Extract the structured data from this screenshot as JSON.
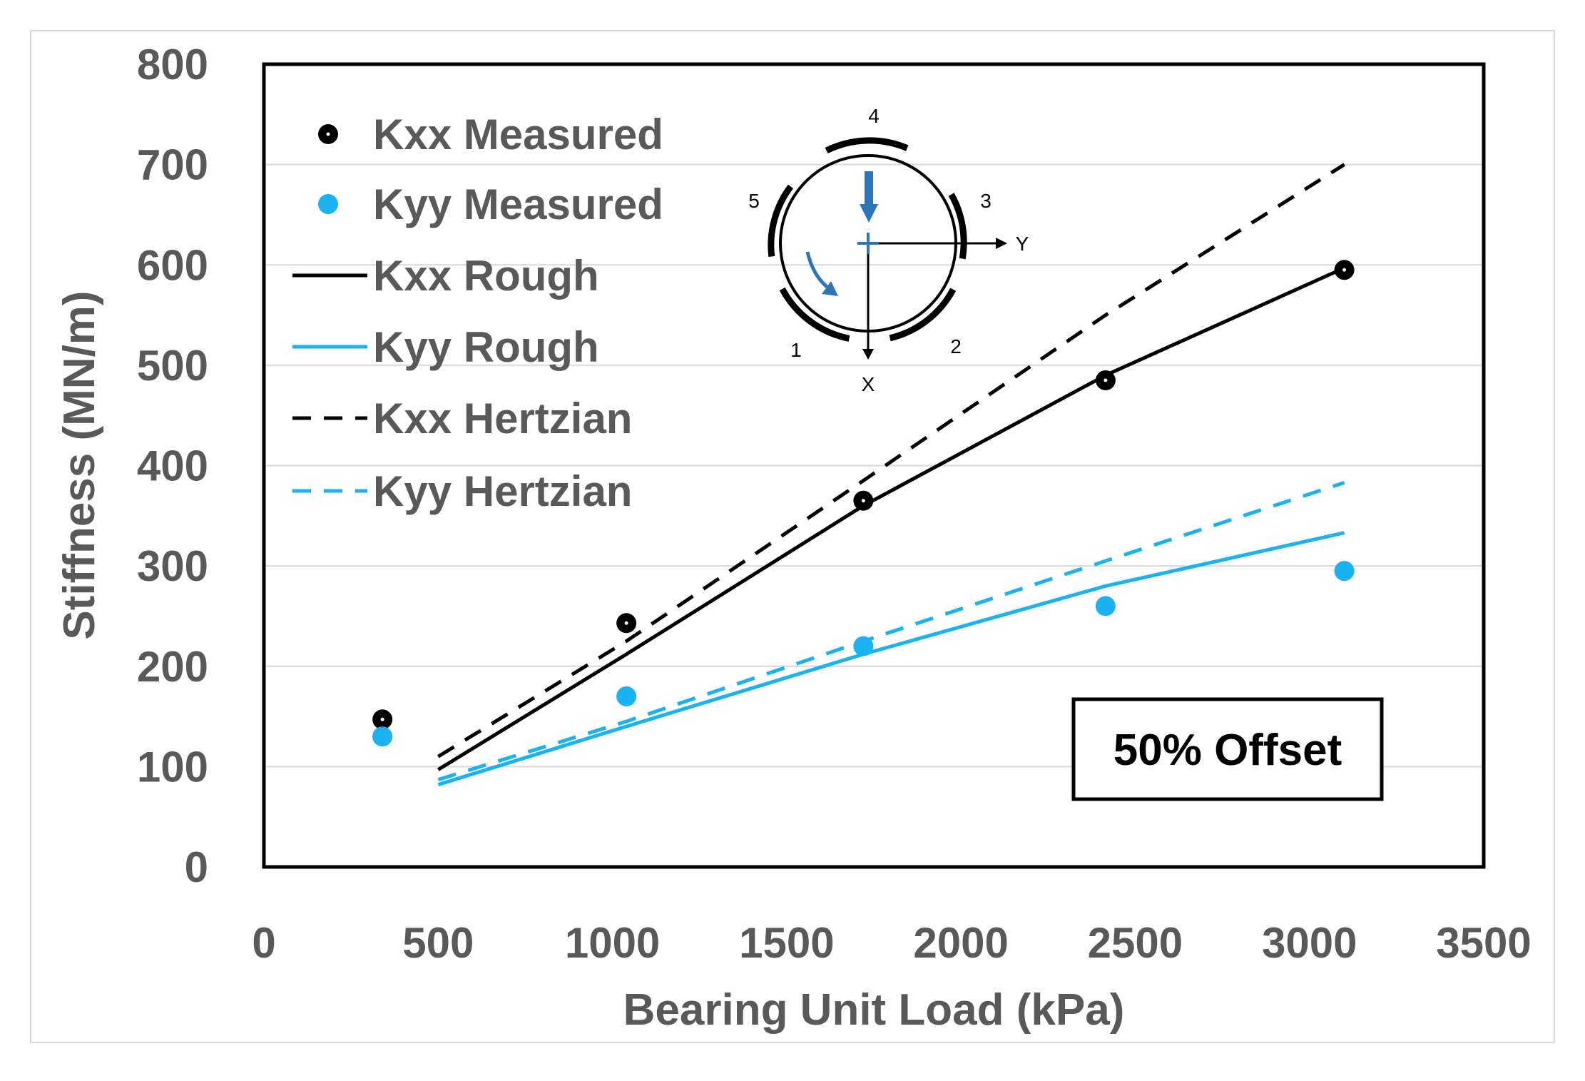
{
  "chart_data": {
    "type": "line",
    "title": "",
    "xlabel": "Bearing Unit Load (kPa)",
    "ylabel": "Stiffness (MN/m)",
    "xlim": [
      0,
      3500
    ],
    "ylim": [
      0,
      800
    ],
    "xticks": [
      "0",
      "500",
      "1000",
      "1500",
      "2000",
      "2500",
      "3000",
      "3500"
    ],
    "yticks": [
      "0",
      "100",
      "200",
      "300",
      "400",
      "500",
      "600",
      "700",
      "800"
    ],
    "grid": true,
    "legend_position": "top-left",
    "series": [
      {
        "name": "Kxx Measured",
        "style": "marker",
        "color": "#000000",
        "x": [
          340,
          1040,
          1720,
          2415,
          3100
        ],
        "y": [
          147,
          243,
          365,
          485,
          595
        ]
      },
      {
        "name": "Kyy Measured",
        "style": "marker",
        "color": "#1ab2f0",
        "x": [
          340,
          1040,
          1720,
          2415,
          3100
        ],
        "y": [
          130,
          170,
          220,
          260,
          295
        ]
      },
      {
        "name": "Kxx Rough",
        "style": "solid",
        "color": "#000000",
        "x": [
          500,
          1040,
          1720,
          2415,
          3100
        ],
        "y": [
          97,
          212,
          360,
          490,
          597
        ]
      },
      {
        "name": "Kyy Rough",
        "style": "solid",
        "color": "#1ab2f0",
        "x": [
          500,
          1040,
          1720,
          2415,
          3100
        ],
        "y": [
          82,
          140,
          212,
          280,
          333
        ]
      },
      {
        "name": "Kxx Hertzian",
        "style": "dashed",
        "color": "#000000",
        "x": [
          500,
          1040,
          1720,
          2415,
          3100
        ],
        "y": [
          110,
          225,
          385,
          550,
          700
        ]
      },
      {
        "name": "Kyy Hertzian",
        "style": "dashed",
        "color": "#1ab2f0",
        "x": [
          500,
          1040,
          1720,
          2415,
          3100
        ],
        "y": [
          87,
          145,
          225,
          305,
          383
        ]
      }
    ],
    "annotation": "50% Offset"
  },
  "diagram": {
    "pad_labels": [
      "1",
      "2",
      "3",
      "4",
      "5"
    ],
    "axis_x_label": "X",
    "axis_y_label": "Y",
    "arrow_color": "#2e75b6"
  }
}
